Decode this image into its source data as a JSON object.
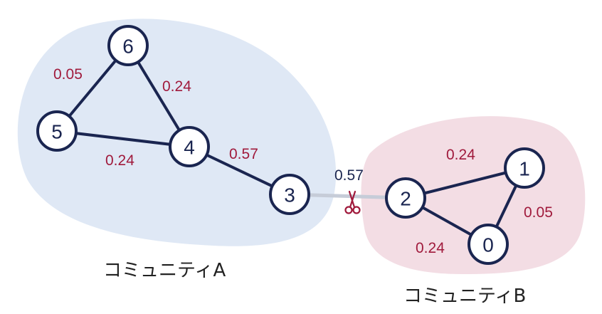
{
  "colors": {
    "community_a_fill": "#dfe8f5",
    "community_b_fill": "#f3dde4",
    "node_stroke": "#1a2550",
    "edge": "#1a2550",
    "cut_edge": "#c6ccd8",
    "weight_label": "#a01a3c",
    "cut_weight_label": "#1a2550",
    "scissors": "#a01a3c"
  },
  "communities": [
    {
      "id": "A",
      "label": "コミュニティA",
      "nodes": [
        "3",
        "4",
        "5",
        "6"
      ]
    },
    {
      "id": "B",
      "label": "コミュニティB",
      "nodes": [
        "0",
        "1",
        "2"
      ]
    }
  ],
  "nodes": [
    {
      "id": "6",
      "label": "6"
    },
    {
      "id": "5",
      "label": "5"
    },
    {
      "id": "4",
      "label": "4"
    },
    {
      "id": "3",
      "label": "3"
    },
    {
      "id": "2",
      "label": "2"
    },
    {
      "id": "1",
      "label": "1"
    },
    {
      "id": "0",
      "label": "0"
    }
  ],
  "edges": [
    {
      "source": "6",
      "target": "5",
      "weight": "0.05"
    },
    {
      "source": "6",
      "target": "4",
      "weight": "0.24"
    },
    {
      "source": "5",
      "target": "4",
      "weight": "0.24"
    },
    {
      "source": "4",
      "target": "3",
      "weight": "0.57"
    },
    {
      "source": "3",
      "target": "2",
      "weight": "0.57",
      "cut": true
    },
    {
      "source": "2",
      "target": "1",
      "weight": "0.24"
    },
    {
      "source": "1",
      "target": "0",
      "weight": "0.05"
    },
    {
      "source": "2",
      "target": "0",
      "weight": "0.24"
    }
  ],
  "cut_marker_icon": "scissors-icon"
}
